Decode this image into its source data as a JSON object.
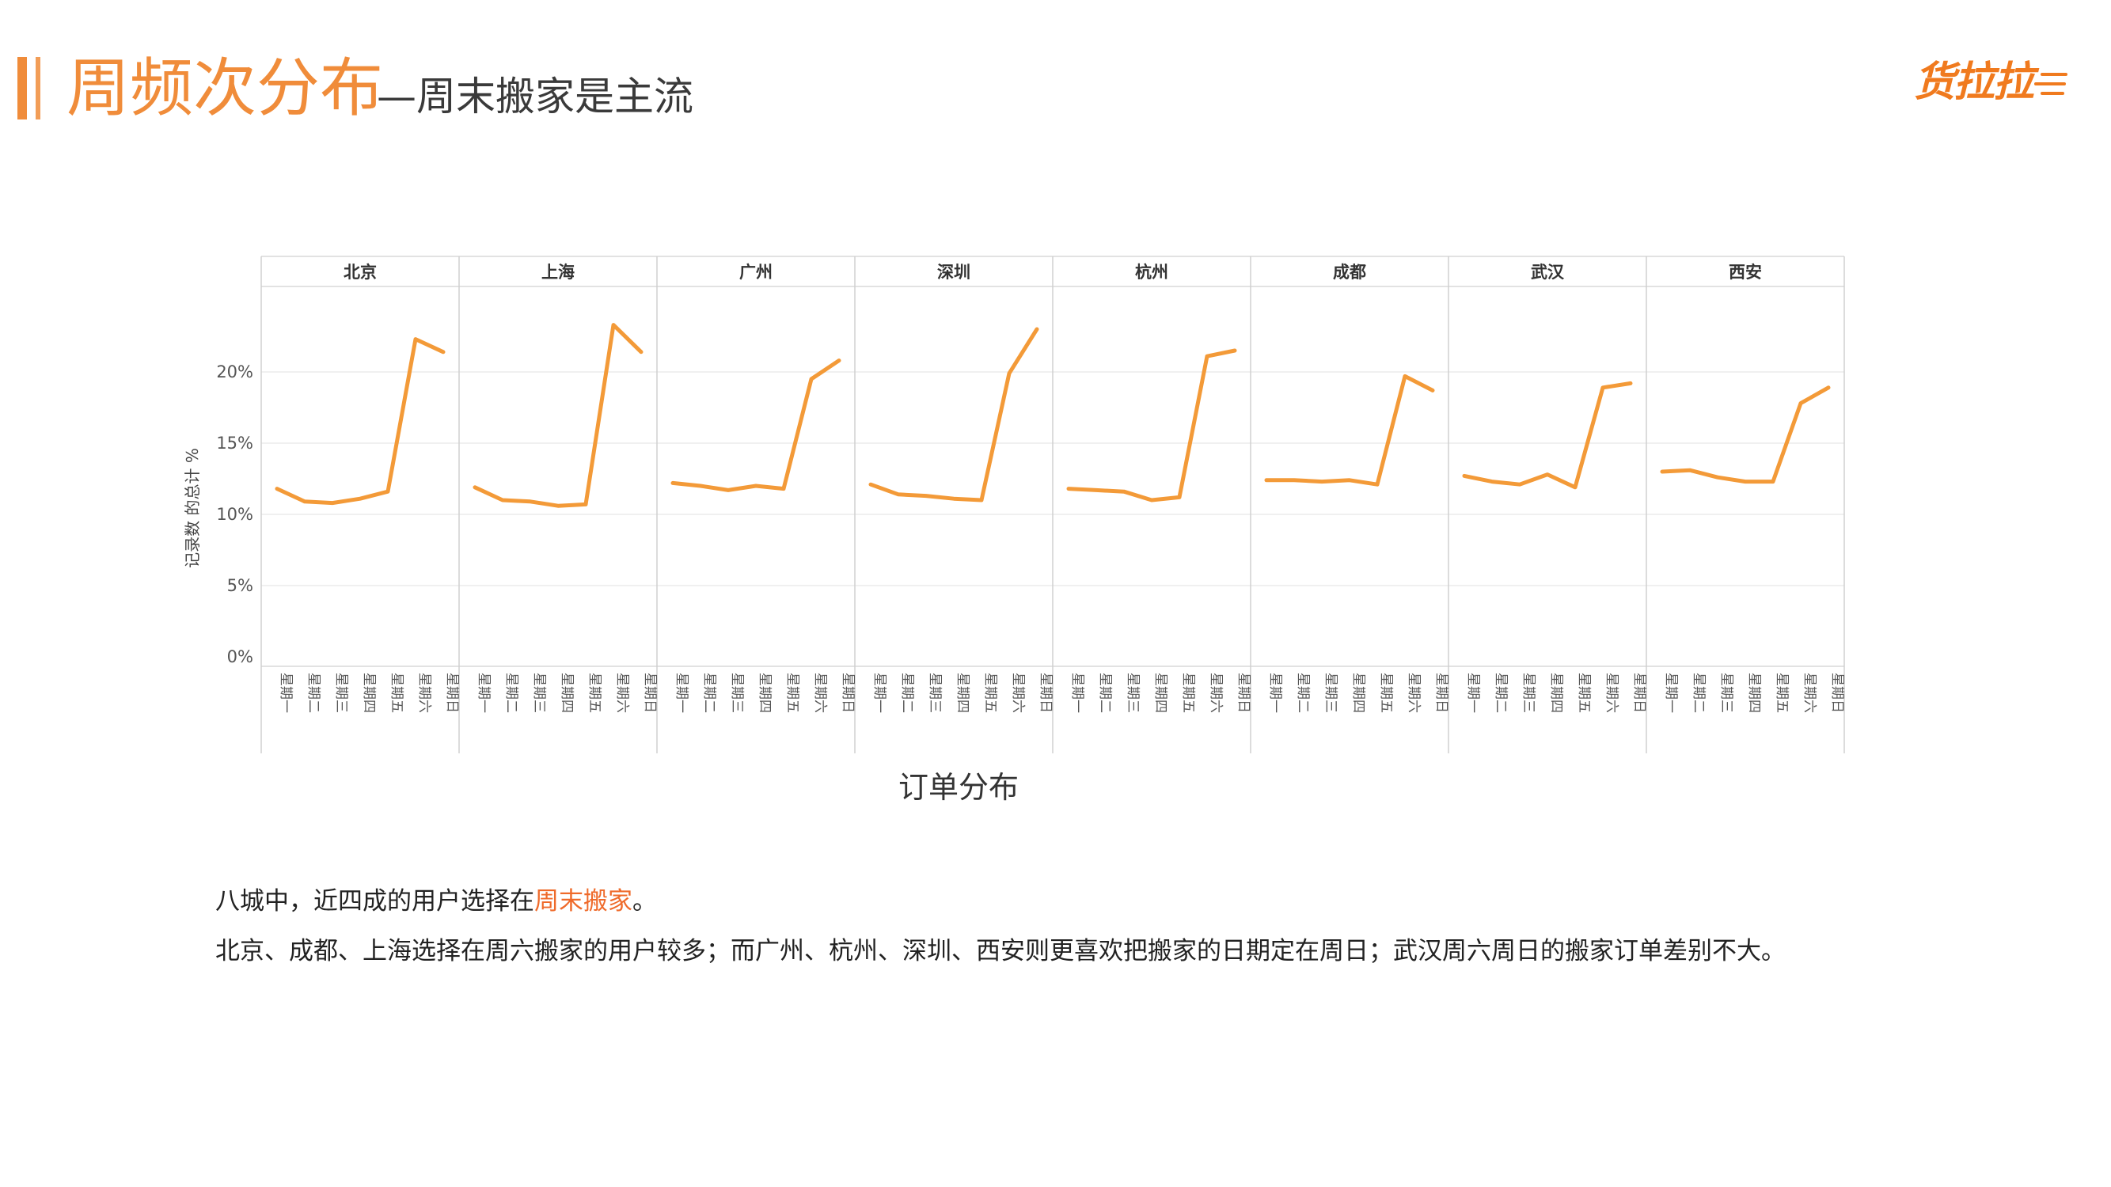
{
  "header": {
    "title": "周频次分布",
    "subtitle": "—周末搬家是主流",
    "logo_text": "货拉拉",
    "accent_color": "#f08c3a"
  },
  "chart_data": {
    "type": "line",
    "title": "",
    "ylabel": "记录数 的总计 %",
    "xlabel": "",
    "ylim": [
      0,
      25
    ],
    "yticks": [
      0,
      5,
      10,
      15,
      20
    ],
    "ytick_labels": [
      "0%",
      "5%",
      "10%",
      "15%",
      "20%"
    ],
    "grid": true,
    "legend": "none",
    "line_color": "#f39a38",
    "categories": [
      "星期一",
      "星期二",
      "星期三",
      "星期四",
      "星期五",
      "星期六",
      "星期日"
    ],
    "series": [
      {
        "name": "北京",
        "values": [
          11.8,
          10.9,
          10.8,
          11.1,
          11.6,
          22.3,
          21.4
        ]
      },
      {
        "name": "上海",
        "values": [
          11.9,
          11.0,
          10.9,
          10.6,
          10.7,
          23.3,
          21.4
        ]
      },
      {
        "name": "广州",
        "values": [
          12.2,
          12.0,
          11.7,
          12.0,
          11.8,
          19.5,
          20.8
        ]
      },
      {
        "name": "深圳",
        "values": [
          12.1,
          11.4,
          11.3,
          11.1,
          11.0,
          19.9,
          23.0
        ]
      },
      {
        "name": "杭州",
        "values": [
          11.8,
          11.7,
          11.6,
          11.0,
          11.2,
          21.1,
          21.5
        ]
      },
      {
        "name": "成都",
        "values": [
          12.4,
          12.4,
          12.3,
          12.4,
          12.1,
          19.7,
          18.7
        ]
      },
      {
        "name": "武汉",
        "values": [
          12.7,
          12.3,
          12.1,
          12.8,
          11.9,
          18.9,
          19.2
        ]
      },
      {
        "name": "西安",
        "values": [
          13.0,
          13.1,
          12.6,
          12.3,
          12.3,
          17.8,
          18.9
        ]
      }
    ]
  },
  "caption": "订单分布",
  "paragraph1": {
    "before": "八城中，近四成的用户选择在",
    "highlight": "周末搬家",
    "after": "。"
  },
  "paragraph2": "北京、成都、上海选择在周六搬家的用户较多；而广州、杭州、深圳、西安则更喜欢把搬家的日期定在周日；武汉周六周日的搬家订单差别不大。"
}
